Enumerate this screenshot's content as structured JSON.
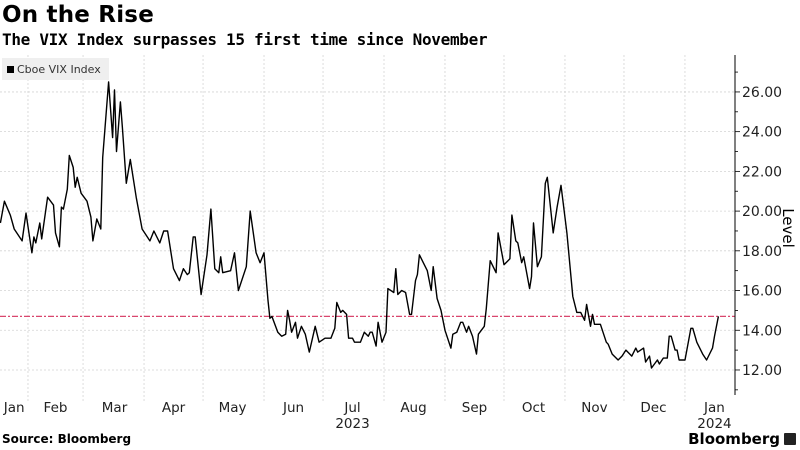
{
  "chart_data": {
    "type": "line",
    "title": "On the Rise",
    "subtitle": "The VIX Index surpasses 15 first time since November",
    "ylabel": "Level",
    "xlabel": "",
    "x_unit": "days since 2023-01-01",
    "ylim": [
      10.74,
      27.86
    ],
    "yticks": [
      "12.00",
      "14.00",
      "16.00",
      "18.00",
      "20.00",
      "22.00",
      "24.00",
      "26.00"
    ],
    "ytick_values": [
      12,
      14,
      16,
      18,
      20,
      22,
      24,
      26
    ],
    "xtick_labels": [
      "Jan",
      "Feb",
      "Mar",
      "Apr",
      "May",
      "Jun",
      "Jul",
      "Aug",
      "Sep",
      "Oct",
      "Nov",
      "Dec",
      "Jan"
    ],
    "xtick_days": [
      24,
      45,
      75,
      105,
      135,
      166,
      196,
      227,
      258,
      288,
      319,
      349,
      380
    ],
    "month_start_days": [
      31,
      59,
      90,
      120,
      151,
      181,
      212,
      243,
      273,
      304,
      334,
      365
    ],
    "year_labels": [
      {
        "label": "2023",
        "day": 196
      },
      {
        "label": "2024",
        "day": 380
      }
    ],
    "grid": true,
    "legend": {
      "position": "top-left",
      "entries": [
        "Cboe VIX Index"
      ]
    },
    "reference_line": {
      "value": 14.7,
      "color": "#d9476e",
      "style": "dash-dot"
    },
    "series": [
      {
        "name": "Cboe VIX Index",
        "color": "#000000",
        "x": [
          17,
          19,
          22,
          24,
          28,
          30,
          33,
          34,
          35,
          37,
          38,
          41,
          44,
          45,
          47,
          48,
          49,
          51,
          52,
          54,
          55,
          56,
          58,
          61,
          63,
          64,
          66,
          68,
          69,
          72,
          74,
          75,
          76,
          78,
          79,
          81,
          83,
          86,
          89,
          93,
          95,
          98,
          100,
          102,
          105,
          108,
          110,
          112,
          113,
          115,
          116,
          119,
          122,
          124,
          126,
          128,
          129,
          130,
          134,
          136,
          138,
          142,
          144,
          147,
          149,
          151,
          153,
          154,
          155,
          158,
          160,
          162,
          163,
          164,
          165,
          167,
          168,
          170,
          172,
          174,
          177,
          179,
          182,
          185,
          187,
          188,
          190,
          191,
          193,
          194,
          196,
          197,
          198,
          200,
          202,
          204,
          205,
          206,
          208,
          209,
          211,
          213,
          214,
          217,
          218,
          219,
          221,
          223,
          225,
          226,
          228,
          229,
          230,
          232,
          234,
          236,
          237,
          239,
          241,
          243,
          246,
          247,
          249,
          251,
          252,
          254,
          255,
          257,
          259,
          260,
          263,
          264,
          266,
          269,
          270,
          273,
          276,
          277,
          279,
          280,
          282,
          283,
          286,
          287,
          288,
          290,
          292,
          293,
          294,
          295,
          298,
          300,
          302,
          305,
          308,
          310,
          312,
          314,
          315,
          317,
          318,
          319,
          322,
          325,
          326,
          328,
          331,
          333,
          335,
          338,
          340,
          341,
          344,
          345,
          347,
          348,
          351,
          352,
          354,
          356,
          357,
          358,
          360,
          361,
          362,
          365,
          368,
          369,
          371,
          374,
          376,
          379,
          380,
          382
        ],
        "values": [
          19.4,
          20.5,
          19.8,
          19.1,
          18.5,
          19.9,
          17.9,
          18.7,
          18.4,
          19.4,
          18.6,
          20.7,
          20.3,
          18.9,
          18.2,
          20.2,
          20.1,
          21.1,
          22.8,
          22.2,
          21.2,
          21.7,
          20.9,
          20.5,
          19.7,
          18.5,
          19.6,
          19.1,
          22.7,
          26.5,
          23.7,
          26.1,
          23.0,
          25.5,
          24.2,
          21.4,
          22.6,
          20.7,
          19.1,
          18.5,
          19.0,
          18.4,
          19.0,
          19.0,
          17.1,
          16.5,
          17.1,
          16.8,
          16.9,
          18.7,
          18.7,
          15.8,
          17.8,
          20.1,
          17.1,
          16.9,
          17.7,
          16.9,
          17.0,
          17.9,
          16.0,
          17.2,
          20.0,
          17.9,
          17.4,
          17.9,
          15.5,
          14.6,
          14.7,
          13.9,
          13.7,
          13.8,
          15.0,
          14.5,
          13.9,
          14.4,
          13.6,
          14.2,
          13.8,
          12.9,
          14.2,
          13.4,
          13.6,
          13.6,
          14.1,
          15.4,
          14.9,
          15.0,
          14.8,
          13.6,
          13.6,
          13.4,
          13.4,
          13.4,
          13.9,
          13.7,
          13.9,
          13.9,
          13.2,
          14.4,
          13.4,
          13.9,
          16.1,
          15.9,
          17.1,
          15.8,
          16.0,
          15.9,
          14.8,
          14.8,
          16.5,
          16.8,
          17.8,
          17.4,
          17.0,
          16.0,
          17.2,
          15.6,
          15.0,
          14.0,
          13.1,
          13.8,
          13.9,
          14.4,
          14.4,
          13.9,
          14.2,
          13.7,
          12.8,
          13.8,
          14.2,
          15.1,
          17.5,
          16.9,
          18.9,
          17.3,
          17.6,
          19.8,
          18.5,
          18.4,
          17.4,
          17.7,
          16.1,
          16.7,
          19.4,
          17.2,
          17.7,
          19.5,
          21.4,
          21.7,
          18.9,
          20.2,
          21.3,
          18.9,
          15.7,
          14.9,
          14.9,
          14.5,
          15.3,
          14.2,
          14.8,
          14.3,
          14.3,
          13.4,
          13.3,
          12.8,
          12.5,
          12.7,
          13.0,
          12.7,
          13.1,
          12.9,
          13.1,
          12.4,
          12.7,
          12.1,
          12.5,
          12.3,
          12.6,
          12.6,
          13.7,
          13.7,
          13.0,
          13.0,
          12.5,
          12.5,
          14.1,
          14.1,
          13.4,
          12.8,
          12.5,
          13.1,
          13.7,
          14.7
        ]
      }
    ]
  },
  "footer": {
    "source": "Source: Bloomberg",
    "brand": "Bloomberg"
  }
}
